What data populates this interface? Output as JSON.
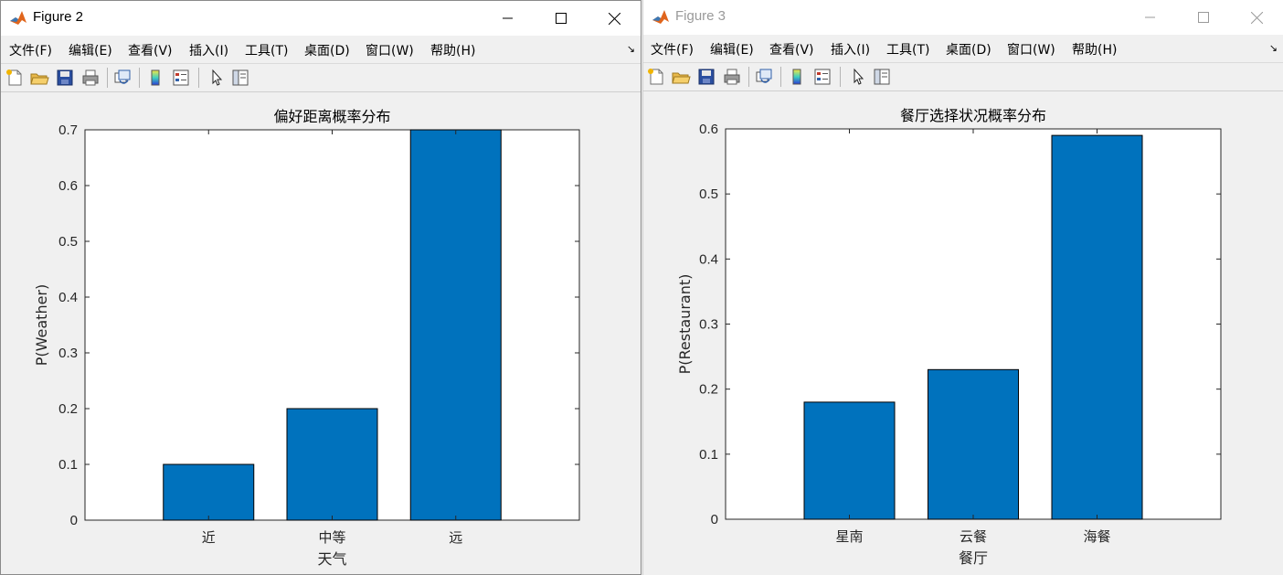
{
  "colors": {
    "bar": "#0072bd",
    "frame": "#262626",
    "title_active": "#000000",
    "title_inactive": "#9a9a9a"
  },
  "menu": [
    "文件(F)",
    "编辑(E)",
    "查看(V)",
    "插入(I)",
    "工具(T)",
    "桌面(D)",
    "窗口(W)",
    "帮助(H)"
  ],
  "toolbar_icons": [
    "new-file-icon",
    "open-folder-icon",
    "save-icon",
    "print-icon",
    "link-axes-icon",
    "colorbar-icon",
    "legend-icon",
    "pointer-arrow-icon",
    "property-editor-icon"
  ],
  "window_controls": [
    "minimize-icon",
    "maximize-icon",
    "close-icon"
  ],
  "windows": [
    {
      "title": "Figure 2"
    },
    {
      "title": "Figure 3"
    }
  ],
  "chart_data": [
    {
      "type": "bar",
      "title": "偏好距离概率分布",
      "xlabel": "天气",
      "ylabel": "P(Weather)",
      "categories": [
        "近",
        "中等",
        "远"
      ],
      "values": [
        0.1,
        0.2,
        0.7
      ],
      "ylim": [
        0,
        0.7
      ],
      "yticks": [
        0,
        0.1,
        0.2,
        0.3,
        0.4,
        0.5,
        0.6,
        0.7
      ],
      "grid": false
    },
    {
      "type": "bar",
      "title": "餐厅选择状况概率分布",
      "xlabel": "餐厅",
      "ylabel": "P(Restaurant)",
      "categories": [
        "星南",
        "云餐",
        "海餐"
      ],
      "values": [
        0.18,
        0.23,
        0.59
      ],
      "ylim": [
        0,
        0.6
      ],
      "yticks": [
        0,
        0.1,
        0.2,
        0.3,
        0.4,
        0.5,
        0.6
      ],
      "grid": false
    }
  ]
}
